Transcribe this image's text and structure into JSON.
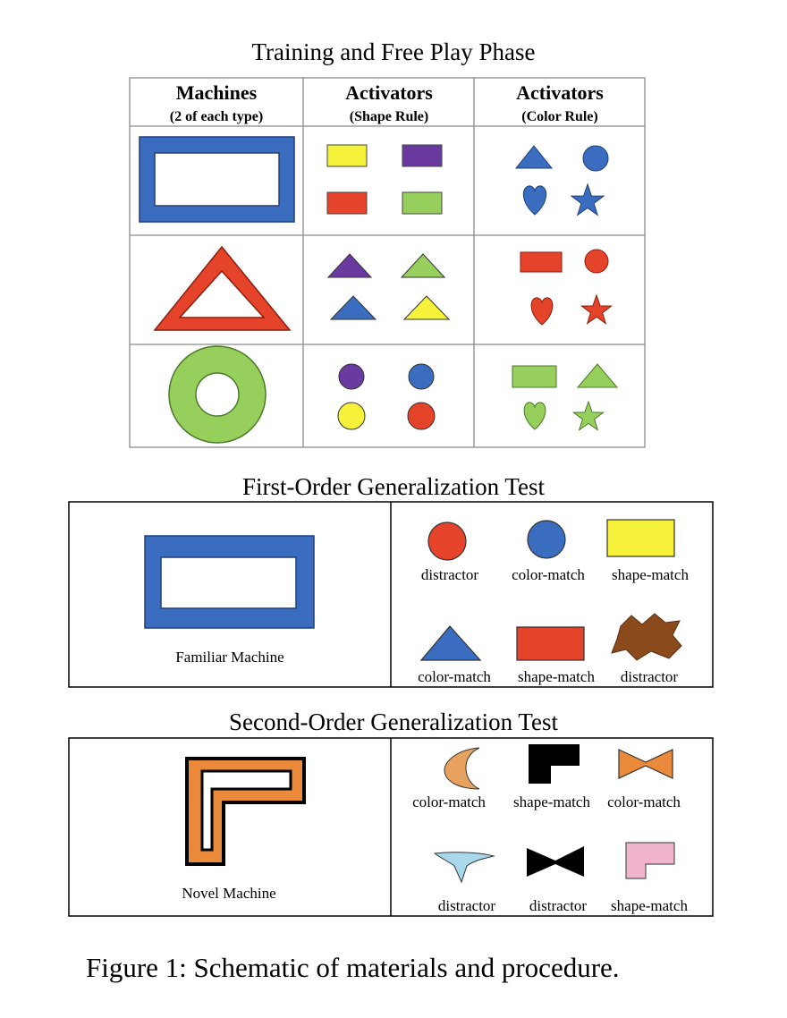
{
  "training": {
    "title": "Training and Free Play Phase",
    "col1_title": "Machines",
    "col1_sub": "(2 of each type)",
    "col2_title": "Activators",
    "col2_sub": "(Shape Rule)",
    "col3_title": "Activators",
    "col3_sub": "(Color Rule)"
  },
  "first_order": {
    "title": "First-Order Generalization Test",
    "machine_label": "Familiar Machine",
    "top_labels": [
      "distractor",
      "color-match",
      "shape-match"
    ],
    "bottom_labels": [
      "color-match",
      "shape-match",
      "distractor"
    ]
  },
  "second_order": {
    "title": "Second-Order Generalization Test",
    "machine_label": "Novel Machine",
    "top_labels": [
      "color-match",
      "shape-match",
      "color-match"
    ],
    "bottom_labels": [
      "distractor",
      "distractor",
      "shape-match"
    ]
  },
  "caption": "Figure 1: Schematic of materials and procedure.",
  "colors": {
    "blue": "#3a6dbf",
    "red": "#e6432b",
    "green": "#96cf5c",
    "yellow": "#f6f23a",
    "purple": "#6b3aa0",
    "orange": "#ec8a3c",
    "brown": "#8b4a1c",
    "light_blue": "#a9d8ec",
    "pink": "#f2b3cc"
  }
}
